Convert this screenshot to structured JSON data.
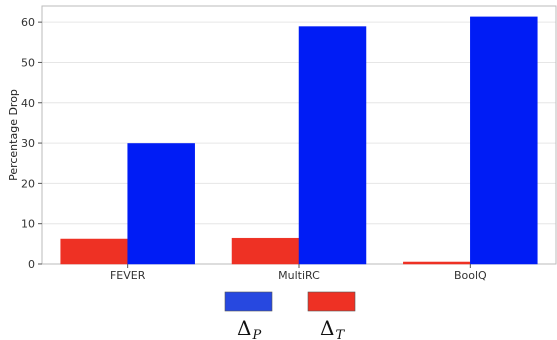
{
  "chart_data": {
    "type": "bar",
    "categories": [
      "FEVER",
      "MultiRC",
      "BoolQ"
    ],
    "series": [
      {
        "name": "T",
        "legend_symbol": "Δ",
        "color": "#ee3124",
        "values": [
          6.2,
          6.4,
          0.5
        ]
      },
      {
        "name": "P",
        "legend_symbol": "Δ",
        "color": "#001cf5",
        "values": [
          29.9,
          58.9,
          61.3
        ]
      }
    ],
    "legend_order": [
      1,
      0
    ],
    "legend_swatch_colors": [
      "#2748e0",
      "#ee3124"
    ],
    "title": "",
    "xlabel": "",
    "ylabel": "Percentage Drop",
    "ylim": [
      0,
      64
    ],
    "yticks": [
      0,
      10,
      20,
      30,
      40,
      50,
      60
    ],
    "grid": true,
    "legend_position": "bottom-center"
  }
}
